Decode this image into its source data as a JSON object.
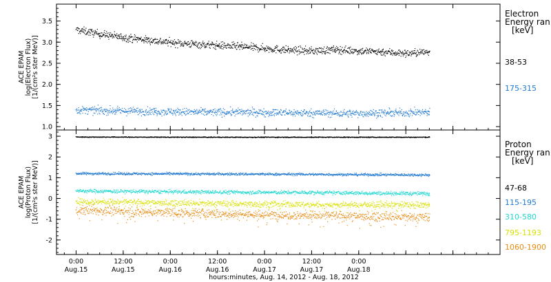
{
  "chart_data": [
    {
      "type": "scatter",
      "panel": "electron",
      "ylabel_lines": [
        "ACE EPAM",
        "log(Electron Flux)",
        "[1/(cm²s ster MeV)]"
      ],
      "ylim": [
        0.92,
        3.9
      ],
      "yticks": [
        1.0,
        1.5,
        2.0,
        2.5,
        3.0,
        3.5
      ],
      "ytick_labels": [
        "1.0",
        "1.5",
        "2.0",
        "2.5",
        "3.0",
        "3.5"
      ],
      "legend_title_lines": [
        "Electron",
        "Energy ran",
        "[keV]"
      ],
      "series": [
        {
          "name": "38-53",
          "color": "#000000",
          "x": [
            0,
            6,
            12,
            18,
            24,
            30,
            36,
            42,
            48,
            54,
            60,
            66,
            72,
            78,
            84,
            90
          ],
          "y": [
            3.3,
            3.2,
            3.12,
            3.06,
            3.0,
            2.96,
            2.93,
            2.9,
            2.86,
            2.82,
            2.8,
            2.83,
            2.8,
            2.78,
            2.74,
            2.78
          ]
        },
        {
          "name": "175-315",
          "color": "#1f78d1",
          "x": [
            0,
            10,
            20,
            30,
            40,
            50,
            60,
            70,
            80,
            90
          ],
          "y": [
            1.4,
            1.38,
            1.37,
            1.35,
            1.35,
            1.34,
            1.33,
            1.32,
            1.33,
            1.35
          ]
        }
      ]
    },
    {
      "type": "scatter",
      "panel": "proton",
      "ylabel_lines": [
        "ACE EPAM",
        "log(Proton Flux)",
        "[1/(cm²s ster MeV)]"
      ],
      "ylim": [
        -2.7,
        3.3
      ],
      "yticks": [
        -2,
        -1,
        0,
        1,
        2,
        3
      ],
      "ytick_labels": [
        "-2",
        "-1",
        "0",
        "1",
        "2",
        "3"
      ],
      "legend_title_lines": [
        "Proton",
        "Energy ran",
        "[keV]"
      ],
      "series": [
        {
          "name": "47-68",
          "color": "#000000",
          "x": [
            0,
            30,
            60,
            90
          ],
          "y": [
            2.98,
            2.97,
            2.97,
            2.97
          ]
        },
        {
          "name": "115-195",
          "color": "#1f78d1",
          "x": [
            0,
            30,
            60,
            90
          ],
          "y": [
            1.22,
            1.2,
            1.18,
            1.15
          ]
        },
        {
          "name": "310-580",
          "color": "#20d8d0",
          "x": [
            0,
            30,
            60,
            90
          ],
          "y": [
            0.38,
            0.33,
            0.3,
            0.25
          ]
        },
        {
          "name": "795-1193",
          "color": "#d8e000",
          "x": [
            0,
            30,
            60,
            90
          ],
          "y": [
            -0.12,
            -0.22,
            -0.28,
            -0.3
          ]
        },
        {
          "name": "1060-1900",
          "color": "#e88a10",
          "x": [
            0,
            30,
            60,
            90
          ],
          "y": [
            -0.55,
            -0.7,
            -0.8,
            -0.9
          ]
        }
      ]
    }
  ],
  "xaxis": {
    "xlim": [
      -5,
      108
    ],
    "ticks": [
      0,
      12,
      24,
      36,
      48,
      60,
      72,
      84,
      96
    ],
    "tick_labels": [
      [
        "0:00",
        "Aug.15"
      ],
      [
        "12:00",
        "Aug.15"
      ],
      [
        "0:00",
        "Aug.16"
      ],
      [
        "12:00",
        "Aug.16"
      ],
      [
        "0:00",
        "Aug.17"
      ],
      [
        "12:00",
        "Aug.17"
      ],
      [
        "0:00",
        "Aug.18"
      ]
    ],
    "major_ticks": [
      0,
      12,
      24,
      36,
      48,
      60,
      72
    ],
    "xlabel": "hours:minutes, Aug. 14, 2012 - Aug. 18, 2012"
  }
}
